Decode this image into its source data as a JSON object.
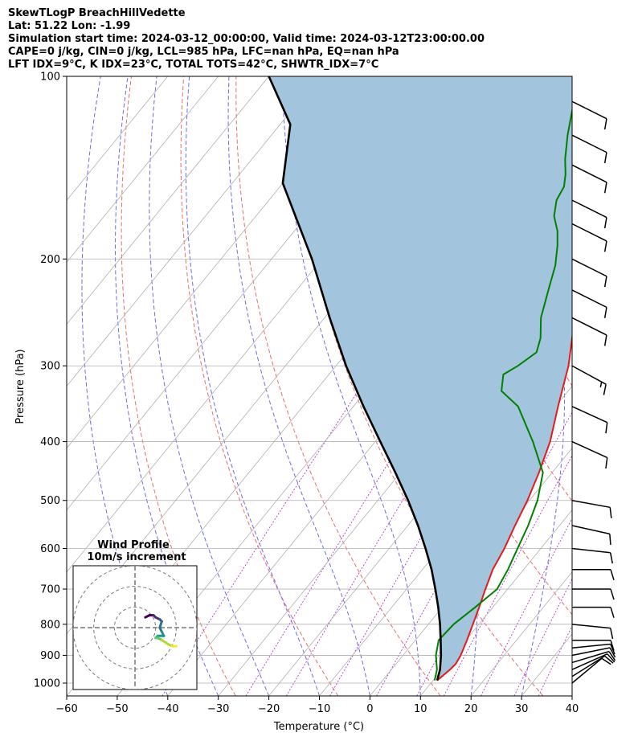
{
  "header": {
    "title": "SkewTLogP BreachHillVedette",
    "latlon": "Lat: 51.22   Lon: -1.99",
    "times": "Simulation start time: 2024-03-12_00:00:00, Valid time: 2024-03-12T23:00:00.00",
    "indices1": "CAPE=0 j/kg, CIN=0 j/kg, LCL=985 hPa, LFC=nan hPa, EQ=nan hPa",
    "indices2": "LFT IDX=9$^\\circ$C, K IDX=23$^\\circ$C, TOTAL TOTS=42$^\\circ$C, SHWTR_IDX=7$^\\circ$C"
  },
  "chart_data": {
    "type": "skewt",
    "xlabel": "Temperature ($^\\circ$C)",
    "ylabel": "Pressure (hPa)",
    "xlim": [
      -60,
      40
    ],
    "ylim": [
      1050,
      100
    ],
    "x_ticks": [
      -60,
      -50,
      -40,
      -30,
      -20,
      -10,
      0,
      10,
      20,
      30,
      40
    ],
    "y_ticks": [
      100,
      200,
      300,
      400,
      500,
      600,
      700,
      800,
      900,
      1000
    ],
    "y_scale": "log",
    "grid": true,
    "temperature_profile": {
      "color": "#e41a1c",
      "points": [
        [
          10.8,
          990
        ],
        [
          11.6,
          950
        ],
        [
          11.8,
          930
        ],
        [
          11.4,
          900
        ],
        [
          10.2,
          850
        ],
        [
          8.8,
          800
        ],
        [
          7.3,
          750
        ],
        [
          5.6,
          700
        ],
        [
          3.9,
          650
        ],
        [
          2.8,
          600
        ],
        [
          1.2,
          550
        ],
        [
          -0.4,
          500
        ],
        [
          -2.6,
          450
        ],
        [
          -5.4,
          400
        ],
        [
          -9.5,
          350
        ],
        [
          -14,
          300
        ],
        [
          -20.5,
          250
        ],
        [
          -26.5,
          200
        ],
        [
          -30.2,
          185
        ],
        [
          -31.4,
          175
        ],
        [
          -33.3,
          165
        ],
        [
          -35.9,
          157
        ],
        [
          -38.7,
          150
        ],
        [
          -40,
          142
        ],
        [
          -44.5,
          130
        ],
        [
          -49.7,
          115
        ],
        [
          -54.1,
          100
        ]
      ]
    },
    "dewpoint_profile": {
      "color": "#008000",
      "points": [
        [
          10.3,
          990
        ],
        [
          9,
          950
        ],
        [
          6.5,
          900
        ],
        [
          4.6,
          850
        ],
        [
          5,
          800
        ],
        [
          6.5,
          750
        ],
        [
          7.9,
          700
        ],
        [
          6.9,
          650
        ],
        [
          5.4,
          600
        ],
        [
          3.8,
          550
        ],
        [
          1.6,
          500
        ],
        [
          -1.8,
          450
        ],
        [
          -8.8,
          400
        ],
        [
          -17.4,
          350
        ],
        [
          -23.2,
          330
        ],
        [
          -25.5,
          310
        ],
        [
          -24,
          300
        ],
        [
          -22.5,
          285
        ],
        [
          -24,
          270
        ],
        [
          -27.2,
          250
        ],
        [
          -30.2,
          225
        ],
        [
          -32.8,
          205
        ],
        [
          -35.6,
          190
        ],
        [
          -37.9,
          180
        ],
        [
          -41,
          170
        ],
        [
          -43.1,
          160
        ],
        [
          -43.8,
          152
        ],
        [
          -45.5,
          145
        ],
        [
          -48,
          137
        ],
        [
          -51.4,
          125
        ],
        [
          -55.6,
          110
        ],
        [
          -58.7,
          100
        ]
      ]
    },
    "parcel_profile": {
      "color": "#000000",
      "points": [
        [
          10.8,
          990
        ],
        [
          9.6,
          950
        ],
        [
          7.5,
          900
        ],
        [
          5,
          850
        ],
        [
          2.3,
          800
        ],
        [
          -0.8,
          750
        ],
        [
          -4.3,
          700
        ],
        [
          -8.2,
          650
        ],
        [
          -12.8,
          600
        ],
        [
          -18,
          550
        ],
        [
          -24,
          500
        ],
        [
          -31,
          450
        ],
        [
          -39,
          400
        ],
        [
          -48,
          350
        ],
        [
          -58,
          300
        ],
        [
          -69,
          250
        ],
        [
          -82,
          200
        ],
        [
          -100,
          150
        ],
        [
          -108,
          120
        ],
        [
          -120,
          100
        ]
      ]
    },
    "shaded_region_color": "#a3c4dd",
    "wind_barbs": [
      {
        "p": 1000,
        "u": -6,
        "v": -5
      },
      {
        "p": 975,
        "u": -8,
        "v": -5
      },
      {
        "p": 950,
        "u": -9,
        "v": -4
      },
      {
        "p": 925,
        "u": -10,
        "v": -3
      },
      {
        "p": 900,
        "u": -10,
        "v": -2
      },
      {
        "p": 875,
        "u": -10,
        "v": -1
      },
      {
        "p": 850,
        "u": -10,
        "v": 0
      },
      {
        "p": 800,
        "u": -10,
        "v": 1
      },
      {
        "p": 750,
        "u": -9,
        "v": 0
      },
      {
        "p": 700,
        "u": -8,
        "v": 0
      },
      {
        "p": 650,
        "u": -8,
        "v": 0
      },
      {
        "p": 600,
        "u": -9,
        "v": 1
      },
      {
        "p": 550,
        "u": -9,
        "v": 2
      },
      {
        "p": 500,
        "u": -11,
        "v": 2
      },
      {
        "p": 400,
        "u": -11,
        "v": 5
      },
      {
        "p": 350,
        "u": -11,
        "v": 5
      },
      {
        "p": 300,
        "u": -11,
        "v": 6
      },
      {
        "p": 250,
        "u": -10,
        "v": 5
      },
      {
        "p": 225,
        "u": -10,
        "v": 5
      },
      {
        "p": 200,
        "u": -10,
        "v": 5
      },
      {
        "p": 175,
        "u": -10,
        "v": 5
      },
      {
        "p": 160,
        "u": -10,
        "v": 5
      },
      {
        "p": 140,
        "u": -10,
        "v": 5
      },
      {
        "p": 125,
        "u": -10,
        "v": 5
      },
      {
        "p": 110,
        "u": -10,
        "v": 5
      }
    ],
    "hodograph": {
      "title": "Wind Profile",
      "subtitle": "10m/s increment",
      "rings": [
        10,
        20,
        30
      ],
      "range": [
        -30,
        30
      ],
      "points": [
        [
          5,
          5
        ],
        [
          7,
          6
        ],
        [
          9,
          6
        ],
        [
          10,
          5
        ],
        [
          12,
          4
        ],
        [
          13,
          3
        ],
        [
          12,
          0
        ],
        [
          13,
          -2
        ],
        [
          14,
          -4
        ],
        [
          11,
          -4
        ],
        [
          10,
          -5
        ],
        [
          11,
          -5
        ],
        [
          13,
          -6
        ],
        [
          16,
          -8
        ],
        [
          18,
          -9
        ],
        [
          20,
          -9
        ]
      ]
    }
  }
}
